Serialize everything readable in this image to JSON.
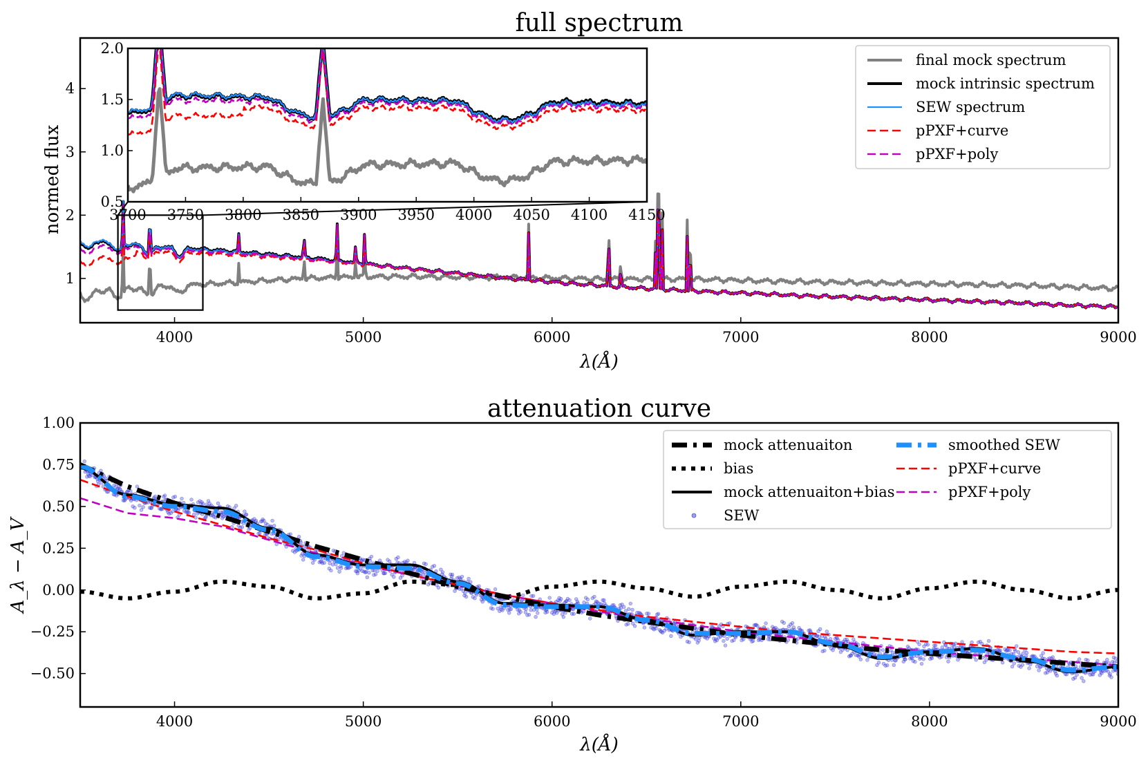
{
  "chart_data": [
    {
      "type": "line",
      "title": "full spectrum",
      "xlabel": "λ(Å)",
      "ylabel": "normed flux",
      "xlim": [
        3500,
        9000
      ],
      "ylim": [
        0.3,
        4.8
      ],
      "xticks": [
        4000,
        5000,
        6000,
        7000,
        8000,
        9000
      ],
      "yticks": [
        1,
        2,
        3,
        4
      ],
      "legend_position": "top-right",
      "series": [
        {
          "name": "final mock spectrum",
          "color": "#808080",
          "style": "solid-thick",
          "x": [
            3500,
            3700,
            3900,
            4100,
            4300,
            4500,
            4700,
            4900,
            5100,
            5300,
            5500,
            5700,
            5900,
            6100,
            6300,
            6500,
            6700,
            6900,
            7100,
            7300,
            7500,
            7700,
            7900,
            8100,
            8300,
            8500,
            8700,
            8900,
            9000
          ],
          "y": [
            0.78,
            0.82,
            0.86,
            0.9,
            0.93,
            0.97,
            1.0,
            1.02,
            1.03,
            1.03,
            1.02,
            1.02,
            1.01,
            1.0,
            0.99,
            0.99,
            0.99,
            0.98,
            0.96,
            0.95,
            0.94,
            0.93,
            0.92,
            0.91,
            0.9,
            0.89,
            0.87,
            0.85,
            0.84
          ]
        },
        {
          "name": "mock intrinsic spectrum",
          "color": "#000000",
          "style": "solid-thick",
          "x": [
            3500,
            3700,
            3900,
            4100,
            4300,
            4500,
            4700,
            4900,
            5100,
            5300,
            5500,
            5700,
            5900,
            6100,
            6300,
            6500,
            6700,
            6900,
            7100,
            7300,
            7500,
            7700,
            7900,
            8100,
            8300,
            8500,
            8700,
            8900,
            9000
          ],
          "y": [
            1.6,
            1.55,
            1.5,
            1.47,
            1.43,
            1.38,
            1.33,
            1.27,
            1.2,
            1.14,
            1.08,
            1.02,
            0.97,
            0.92,
            0.88,
            0.84,
            0.81,
            0.78,
            0.76,
            0.73,
            0.71,
            0.69,
            0.67,
            0.65,
            0.63,
            0.61,
            0.58,
            0.56,
            0.55
          ]
        },
        {
          "name": "SEW spectrum",
          "color": "#1e90ff",
          "style": "solid",
          "x": [
            3500,
            3700,
            3900,
            4100,
            4300,
            4500,
            4700,
            4900,
            5100,
            5300,
            5500,
            5700,
            5900,
            6100,
            6300,
            6500,
            6700,
            6900,
            7100,
            7300,
            7500,
            7700,
            7900,
            8100,
            8300,
            8500,
            8700,
            8900,
            9000
          ],
          "y": [
            1.62,
            1.56,
            1.5,
            1.46,
            1.42,
            1.37,
            1.32,
            1.26,
            1.2,
            1.14,
            1.08,
            1.02,
            0.97,
            0.92,
            0.88,
            0.84,
            0.81,
            0.78,
            0.76,
            0.73,
            0.71,
            0.69,
            0.67,
            0.65,
            0.63,
            0.61,
            0.58,
            0.56,
            0.55
          ]
        },
        {
          "name": "pPXF+curve",
          "color": "#ff0000",
          "style": "dashed",
          "x": [
            3500,
            3700,
            3900,
            4100,
            4300,
            4500,
            4700,
            4900,
            5100,
            5300,
            5500,
            5700,
            5900,
            6100,
            6300,
            6500,
            6700,
            6900,
            7100,
            7300,
            7500,
            7700,
            7900,
            8100,
            8300,
            8500,
            8700,
            8900,
            9000
          ],
          "y": [
            1.38,
            1.42,
            1.42,
            1.4,
            1.38,
            1.34,
            1.3,
            1.25,
            1.19,
            1.13,
            1.07,
            1.02,
            0.97,
            0.92,
            0.88,
            0.84,
            0.81,
            0.78,
            0.76,
            0.73,
            0.71,
            0.69,
            0.67,
            0.65,
            0.63,
            0.61,
            0.58,
            0.56,
            0.55
          ]
        },
        {
          "name": "pPXF+poly",
          "color": "#c000c0",
          "style": "dashed",
          "x": [
            3500,
            3700,
            3900,
            4100,
            4300,
            4500,
            4700,
            4900,
            5100,
            5300,
            5500,
            5700,
            5900,
            6100,
            6300,
            6500,
            6700,
            6900,
            7100,
            7300,
            7500,
            7700,
            7900,
            8100,
            8300,
            8500,
            8700,
            8900,
            9000
          ],
          "y": [
            1.5,
            1.5,
            1.47,
            1.44,
            1.4,
            1.36,
            1.31,
            1.26,
            1.2,
            1.14,
            1.08,
            1.02,
            0.97,
            0.92,
            0.88,
            0.84,
            0.81,
            0.78,
            0.76,
            0.73,
            0.71,
            0.69,
            0.67,
            0.65,
            0.63,
            0.61,
            0.58,
            0.56,
            0.55
          ]
        }
      ],
      "emission_lines": [
        {
          "x": 3727,
          "height": 0.9
        },
        {
          "x": 3869,
          "height": 0.8
        },
        {
          "x": 4340,
          "height": 0.3
        },
        {
          "x": 4686,
          "height": 0.4
        },
        {
          "x": 4861,
          "height": 0.7
        },
        {
          "x": 4959,
          "height": 0.3
        },
        {
          "x": 5007,
          "height": 0.6
        },
        {
          "x": 5876,
          "height": 0.8
        },
        {
          "x": 6300,
          "height": 0.9
        },
        {
          "x": 6364,
          "height": 0.3
        },
        {
          "x": 6548,
          "height": 0.6
        },
        {
          "x": 6563,
          "height": 2.6
        },
        {
          "x": 6584,
          "height": 1.0
        },
        {
          "x": 6716,
          "height": 0.9
        },
        {
          "x": 6731,
          "height": 0.8
        }
      ],
      "inset": {
        "xlim": [
          3700,
          4150
        ],
        "ylim": [
          0.5,
          2.0
        ],
        "xticks": [
          3700,
          3750,
          3800,
          3850,
          3900,
          3950,
          4000,
          4050,
          4100,
          4150
        ],
        "yticks": [
          0.5,
          1.0,
          1.5,
          2.0
        ],
        "zoom_region": {
          "x": [
            3700,
            4150
          ],
          "y": [
            0.5,
            2.0
          ]
        }
      }
    },
    {
      "type": "line",
      "title": "attenuation curve",
      "xlabel": "λ(Å)",
      "ylabel": "A_λ − A_V",
      "xlim": [
        3500,
        9000
      ],
      "ylim": [
        -0.7,
        1.0
      ],
      "xticks": [
        4000,
        5000,
        6000,
        7000,
        8000,
        9000
      ],
      "yticks": [
        1.0,
        0.75,
        0.5,
        0.25,
        0.0,
        -0.25,
        -0.5
      ],
      "legend_position": "top-right",
      "series": [
        {
          "name": "mock attenuaiton",
          "color": "#000000",
          "style": "dashdot-thick"
        },
        {
          "name": "bias",
          "color": "#000000",
          "style": "dotted-thick"
        },
        {
          "name": "mock attenuaiton+bias",
          "color": "#000000",
          "style": "solid-thick"
        },
        {
          "name": "SEW",
          "color": "#3a3ae0",
          "style": "points"
        },
        {
          "name": "smoothed SEW",
          "color": "#1e90ff",
          "style": "dashdot-thick"
        },
        {
          "name": "pPXF+curve",
          "color": "#ff0000",
          "style": "dashed"
        },
        {
          "name": "pPXF+poly",
          "color": "#c000c0",
          "style": "dashed"
        }
      ],
      "curves": {
        "x": [
          3500,
          3750,
          4000,
          4250,
          4500,
          4750,
          5000,
          5250,
          5500,
          5750,
          6000,
          6250,
          6500,
          6750,
          7000,
          7250,
          7500,
          7750,
          8000,
          8250,
          8500,
          8750,
          9000
        ],
        "mock": [
          0.75,
          0.62,
          0.52,
          0.44,
          0.35,
          0.26,
          0.18,
          0.1,
          0.02,
          -0.04,
          -0.1,
          -0.15,
          -0.19,
          -0.23,
          -0.27,
          -0.3,
          -0.33,
          -0.36,
          -0.38,
          -0.4,
          -0.42,
          -0.44,
          -0.46
        ],
        "bias": [
          -0.01,
          -0.05,
          -0.01,
          0.05,
          0.02,
          -0.05,
          -0.02,
          0.05,
          0.03,
          -0.04,
          0.02,
          0.05,
          0.01,
          -0.04,
          0.02,
          0.05,
          0.0,
          -0.05,
          0.01,
          0.05,
          0.0,
          -0.05,
          0.0
        ],
        "mock_plus_bias": [
          0.73,
          0.57,
          0.51,
          0.49,
          0.37,
          0.21,
          0.15,
          0.15,
          0.05,
          -0.08,
          -0.09,
          -0.1,
          -0.18,
          -0.27,
          -0.25,
          -0.25,
          -0.33,
          -0.41,
          -0.37,
          -0.35,
          -0.42,
          -0.49,
          -0.46
        ],
        "smoothed_sew": [
          0.74,
          0.56,
          0.5,
          0.47,
          0.36,
          0.2,
          0.14,
          0.13,
          0.04,
          -0.09,
          -0.1,
          -0.1,
          -0.18,
          -0.26,
          -0.26,
          -0.25,
          -0.32,
          -0.4,
          -0.37,
          -0.36,
          -0.41,
          -0.48,
          -0.46
        ],
        "ppxf_curve": [
          0.66,
          0.56,
          0.47,
          0.39,
          0.31,
          0.24,
          0.16,
          0.09,
          0.03,
          -0.03,
          -0.08,
          -0.12,
          -0.16,
          -0.19,
          -0.22,
          -0.25,
          -0.27,
          -0.29,
          -0.31,
          -0.33,
          -0.35,
          -0.37,
          -0.38
        ],
        "ppxf_poly": [
          0.55,
          0.46,
          0.43,
          0.38,
          0.3,
          0.22,
          0.15,
          0.09,
          0.03,
          -0.03,
          -0.08,
          -0.13,
          -0.17,
          -0.21,
          -0.25,
          -0.28,
          -0.31,
          -0.34,
          -0.37,
          -0.39,
          -0.41,
          -0.43,
          -0.45
        ]
      }
    }
  ]
}
